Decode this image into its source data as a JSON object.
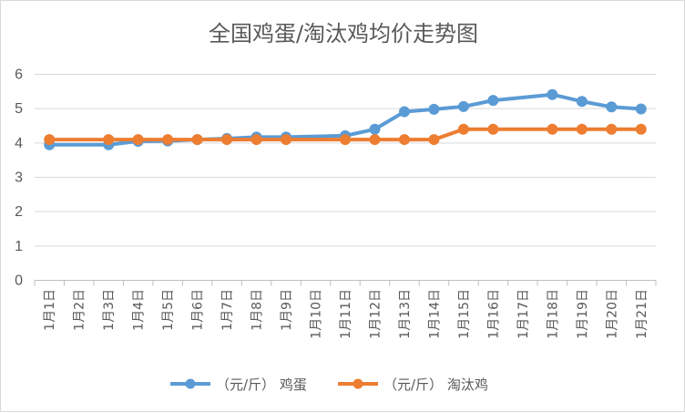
{
  "chart_data": {
    "type": "line",
    "title": "全国鸡蛋/淘汰鸡均价走势图",
    "xlabel": "",
    "ylabel": "",
    "categories": [
      "1月1日",
      "1月2日",
      "1月3日",
      "1月4日",
      "1月5日",
      "1月6日",
      "1月7日",
      "1月8日",
      "1月9日",
      "1月10日",
      "1月11日",
      "1月12日",
      "1月13日",
      "1月14日",
      "1月15日",
      "1月16日",
      "1月17日",
      "1月18日",
      "1月19日",
      "1月20日",
      "1月21日"
    ],
    "ylim": [
      0,
      6
    ],
    "yticks": [
      "0",
      "1",
      "2",
      "3",
      "4",
      "5",
      "6"
    ],
    "grid": "horizontal",
    "legend_position": "bottom",
    "series": [
      {
        "name": "（元/斤） 鸡蛋",
        "color": "#5B9BD5",
        "values": [
          3.95,
          null,
          3.95,
          4.05,
          4.06,
          4.1,
          4.13,
          4.17,
          4.17,
          null,
          4.21,
          4.4,
          4.91,
          4.98,
          5.06,
          5.24,
          null,
          5.41,
          5.21,
          5.05,
          4.99
        ]
      },
      {
        "name": "（元/斤） 淘汰鸡",
        "color": "#ED7D31",
        "values": [
          4.1,
          null,
          4.1,
          4.1,
          4.1,
          4.1,
          4.1,
          4.1,
          4.1,
          null,
          4.1,
          4.1,
          4.1,
          4.1,
          4.4,
          4.4,
          null,
          4.4,
          4.4,
          4.4,
          4.4
        ]
      }
    ]
  }
}
